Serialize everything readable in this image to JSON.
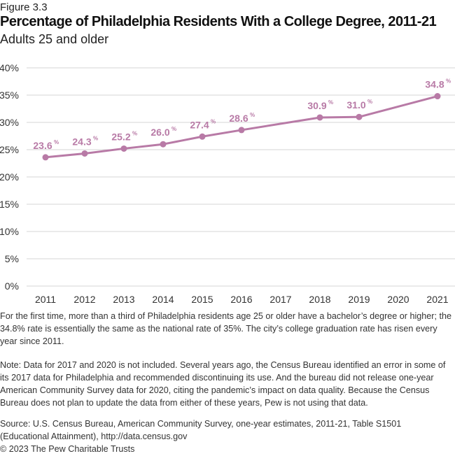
{
  "figure_label": "Figure 3.3",
  "title": "Percentage of Philadelphia Residents With a College Degree, 2011-21",
  "subtitle": "Adults 25 and older",
  "description": "For the first time, more than a third of Philadelphia residents age 25 or older have a bachelor’s degree or higher; the 34.8% rate is essentially the same as the national rate of 35%. The city’s college graduation rate has risen every year since 2011.",
  "note": "Note: Data for 2017 and 2020 is not included. Several years ago, the Census Bureau identified an error in some of its 2017 data for Philadelphia and recommended discontinuing its use. And the bureau did not release one-year American Community Survey data for 2020, citing the pandemic’s impact on data quality. Because the Census Bureau does not plan to update the data from either of these years, Pew is not using that data.",
  "source": "Source: U.S. Census Bureau, American Community Survey, one-year estimates, 2011-21, Table S1501 (Educational Attainment), http://data.census.gov",
  "copyright": "© 2023 The Pew Charitable Trusts",
  "chart_data": {
    "type": "line",
    "title": "Percentage of Philadelphia Residents With a College Degree, 2011-21",
    "subtitle": "Adults 25 and older",
    "categories": [
      "2011",
      "2012",
      "2013",
      "2014",
      "2015",
      "2016",
      "2017",
      "2018",
      "2019",
      "2020",
      "2021"
    ],
    "x": [
      2011,
      2012,
      2013,
      2014,
      2015,
      2016,
      2018,
      2019,
      2021
    ],
    "values": [
      23.6,
      24.3,
      25.2,
      26.0,
      27.4,
      28.6,
      30.9,
      31.0,
      34.8
    ],
    "data_labels": [
      "23.6",
      "24.3",
      "25.2",
      "26.0",
      "27.4",
      "28.6",
      "30.9",
      "31.0",
      "34.8"
    ],
    "ylim": [
      0,
      40
    ],
    "yticks": [
      "0%",
      "5%",
      "10%",
      "15%",
      "20%",
      "25%",
      "30%",
      "35%",
      "40%"
    ],
    "grid": true,
    "legend": "none",
    "line_color": "#b87aa6"
  }
}
